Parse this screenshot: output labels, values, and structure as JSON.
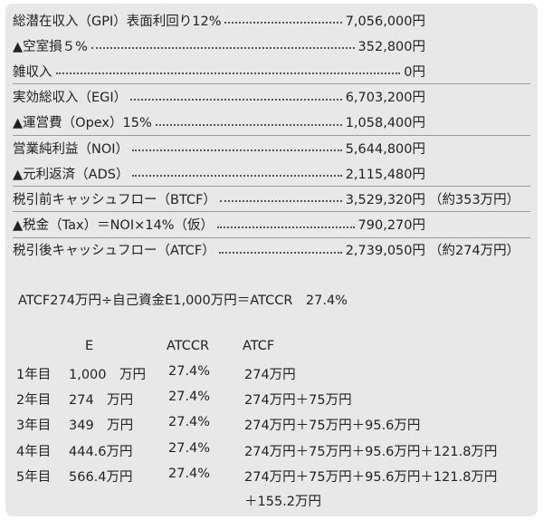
{
  "income_statement": {
    "rows": [
      {
        "label": "総潜在収入（GPI）表面利回り12%",
        "value": "7,056,000円"
      },
      {
        "label": "▲空室損５%",
        "value": "352,800円"
      },
      {
        "label": "雑収入",
        "value": "0円"
      },
      {
        "label": "実効総収入（EGI）",
        "value": "6,703,200円"
      },
      {
        "label": "▲運営費（Opex）15%",
        "value": "1,058,400円"
      },
      {
        "label": "営業純利益（NOI）",
        "value": "5,644,800円"
      },
      {
        "label": "▲元利返済（ADS）",
        "value": "2,115,480円"
      },
      {
        "label": "税引前キャッシュフロー（BTCF）",
        "value": "3,529,320円",
        "note": "（約353万円）"
      },
      {
        "label": "▲税金（Tax）＝NOI×14%（仮）",
        "value": "790,270円"
      },
      {
        "label": "税引後キャッシュフロー（ATCF）",
        "value": "2,739,050円",
        "note": "（約274万円）"
      }
    ]
  },
  "formula": "ATCF274万円÷自己資金E1,000万円＝ATCCR　27.4%",
  "table": {
    "headers": [
      "E",
      "ATCCR",
      "ATCF"
    ],
    "rows": [
      {
        "year": "1年目",
        "e": "1,000　万円",
        "atccr": "27.4%",
        "atcf": [
          "274万円"
        ]
      },
      {
        "year": "2年目",
        "e": "274　万円",
        "atccr": "27.4%",
        "atcf": [
          "274万円＋75万円"
        ]
      },
      {
        "year": "3年目",
        "e": "349　万円",
        "atccr": "27.4%",
        "atcf": [
          "274万円＋75万円＋95.6万円"
        ]
      },
      {
        "year": "4年目",
        "e": "444.6万円",
        "atccr": "27.4%",
        "atcf": [
          "274万円＋75万円＋95.6万円＋121.8万円"
        ]
      },
      {
        "year": "5年目",
        "e": "566.4万円",
        "atccr": "27.4%",
        "atcf": [
          "274万円＋75万円＋95.6万円＋121.8万円",
          "＋155.2万円"
        ]
      }
    ]
  }
}
